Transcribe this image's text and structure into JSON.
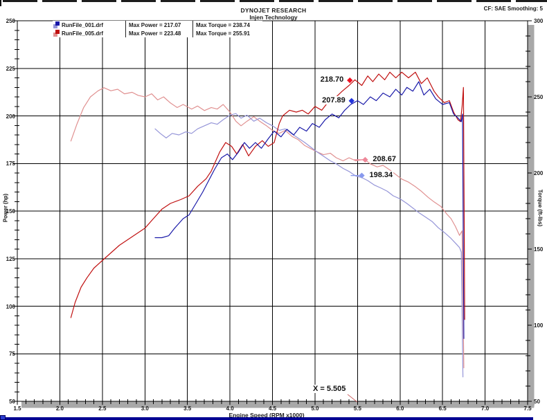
{
  "header": {
    "title": "DYNOJET RESEARCH",
    "subtitle": "Injen Technology",
    "top_right": "CF: SAE  Smoothing: 5"
  },
  "legend": {
    "rows": [
      {
        "file": "RunFile_001.drf",
        "max_power": "Max Power = 217.07",
        "max_torque": "Max Torque = 238.74",
        "color": "#1818a8",
        "color_light": "#9595d8"
      },
      {
        "file": "RunFile_005.drf",
        "max_power": "Max Power = 223.48",
        "max_torque": "Max Torque = 255.91",
        "color": "#c01010",
        "color_light": "#e09090"
      }
    ]
  },
  "chart_data": {
    "type": "line",
    "title": "DYNOJET RESEARCH",
    "subtitle": "Injen Technology",
    "xlabel": "Engine Speed (RPM x1000)",
    "ylabel_left": "Power (hp)",
    "ylabel_right": "Torque (ft-lbs)",
    "x_range": [
      1.5,
      7.5
    ],
    "y_left_range": [
      50,
      250
    ],
    "y_right_range": [
      50,
      300
    ],
    "x_ticks": [
      1.5,
      2.0,
      2.5,
      3.0,
      3.5,
      4.0,
      4.5,
      5.0,
      5.5,
      6.0,
      6.5,
      7.0,
      7.5
    ],
    "y_left_ticks": [
      250,
      225,
      200,
      175,
      150,
      125,
      100,
      75,
      50
    ],
    "y_right_ticks": [
      300,
      250,
      200,
      150,
      100,
      50
    ],
    "minor_steps": {
      "x": 0.1,
      "left": 5,
      "right": 10
    },
    "grid": true,
    "legend_position": "top-left",
    "cursor_label": "X = 5.505",
    "cursor_x": 5.505,
    "series": [
      {
        "name": "RunFile_005 Torque",
        "axis": "right",
        "color": "#e09090",
        "points": [
          [
            2.13,
            221
          ],
          [
            2.2,
            232
          ],
          [
            2.28,
            243
          ],
          [
            2.36,
            250
          ],
          [
            2.45,
            254
          ],
          [
            2.52,
            256
          ],
          [
            2.6,
            254
          ],
          [
            2.68,
            255
          ],
          [
            2.76,
            252
          ],
          [
            2.85,
            253
          ],
          [
            2.92,
            251
          ],
          [
            3.0,
            250
          ],
          [
            3.08,
            252
          ],
          [
            3.15,
            248
          ],
          [
            3.22,
            250
          ],
          [
            3.3,
            246
          ],
          [
            3.38,
            243
          ],
          [
            3.45,
            245
          ],
          [
            3.55,
            242
          ],
          [
            3.62,
            244
          ],
          [
            3.7,
            241
          ],
          [
            3.78,
            243
          ],
          [
            3.85,
            242
          ],
          [
            3.92,
            245
          ],
          [
            4.0,
            240
          ],
          [
            4.07,
            234
          ],
          [
            4.13,
            231
          ],
          [
            4.2,
            234
          ],
          [
            4.28,
            237
          ],
          [
            4.35,
            234
          ],
          [
            4.43,
            231
          ],
          [
            4.5,
            228
          ],
          [
            4.58,
            226
          ],
          [
            4.65,
            228
          ],
          [
            4.73,
            224
          ],
          [
            4.8,
            222
          ],
          [
            4.88,
            218
          ],
          [
            4.95,
            216
          ],
          [
            5.02,
            214
          ],
          [
            5.1,
            212
          ],
          [
            5.18,
            213
          ],
          [
            5.25,
            210
          ],
          [
            5.33,
            208
          ],
          [
            5.4,
            210
          ],
          [
            5.48,
            208
          ],
          [
            5.58,
            209
          ],
          [
            5.65,
            206
          ],
          [
            5.73,
            204
          ],
          [
            5.8,
            205
          ],
          [
            5.88,
            202
          ],
          [
            5.95,
            199
          ],
          [
            6.02,
            196
          ],
          [
            6.1,
            194
          ],
          [
            6.18,
            191
          ],
          [
            6.25,
            188
          ],
          [
            6.33,
            184
          ],
          [
            6.4,
            181
          ],
          [
            6.48,
            178
          ],
          [
            6.55,
            173
          ],
          [
            6.6,
            170
          ],
          [
            6.65,
            165
          ],
          [
            6.7,
            159
          ],
          [
            6.73,
            162
          ],
          [
            6.75,
            72
          ]
        ]
      },
      {
        "name": "RunFile_001 Torque",
        "axis": "right",
        "color": "#9595d8",
        "points": [
          [
            3.12,
            229
          ],
          [
            3.18,
            226
          ],
          [
            3.25,
            223
          ],
          [
            3.32,
            226
          ],
          [
            3.4,
            225
          ],
          [
            3.48,
            227
          ],
          [
            3.55,
            226
          ],
          [
            3.62,
            229
          ],
          [
            3.7,
            231
          ],
          [
            3.78,
            233
          ],
          [
            3.85,
            232
          ],
          [
            3.92,
            235
          ],
          [
            4.0,
            238
          ],
          [
            4.07,
            239
          ],
          [
            4.13,
            236
          ],
          [
            4.2,
            238
          ],
          [
            4.28,
            234
          ],
          [
            4.35,
            236
          ],
          [
            4.43,
            233
          ],
          [
            4.5,
            231
          ],
          [
            4.58,
            228
          ],
          [
            4.65,
            229
          ],
          [
            4.72,
            226
          ],
          [
            4.8,
            223
          ],
          [
            4.88,
            220
          ],
          [
            4.95,
            217
          ],
          [
            5.02,
            214
          ],
          [
            5.1,
            211
          ],
          [
            5.18,
            208
          ],
          [
            5.25,
            206
          ],
          [
            5.33,
            203
          ],
          [
            5.4,
            201
          ],
          [
            5.48,
            198
          ],
          [
            5.55,
            197
          ],
          [
            5.62,
            195
          ],
          [
            5.7,
            192
          ],
          [
            5.78,
            190
          ],
          [
            5.85,
            188
          ],
          [
            5.92,
            185
          ],
          [
            6.0,
            183
          ],
          [
            6.08,
            180
          ],
          [
            6.15,
            177
          ],
          [
            6.22,
            174
          ],
          [
            6.3,
            171
          ],
          [
            6.38,
            168
          ],
          [
            6.45,
            164
          ],
          [
            6.52,
            161
          ],
          [
            6.6,
            157
          ],
          [
            6.65,
            154
          ],
          [
            6.7,
            151
          ],
          [
            6.72,
            148
          ],
          [
            6.74,
            66
          ]
        ]
      },
      {
        "name": "RunFile_005 Power",
        "axis": "left",
        "color": "#c01010",
        "points": [
          [
            2.13,
            94
          ],
          [
            2.18,
            102
          ],
          [
            2.25,
            110
          ],
          [
            2.32,
            115
          ],
          [
            2.4,
            120
          ],
          [
            2.5,
            124
          ],
          [
            2.6,
            128
          ],
          [
            2.7,
            132
          ],
          [
            2.8,
            135
          ],
          [
            2.9,
            138
          ],
          [
            3.0,
            141
          ],
          [
            3.1,
            146
          ],
          [
            3.2,
            151
          ],
          [
            3.3,
            154
          ],
          [
            3.42,
            156
          ],
          [
            3.52,
            158
          ],
          [
            3.62,
            163
          ],
          [
            3.72,
            167
          ],
          [
            3.78,
            171
          ],
          [
            3.88,
            181
          ],
          [
            3.95,
            186
          ],
          [
            4.02,
            184
          ],
          [
            4.08,
            180
          ],
          [
            4.15,
            185
          ],
          [
            4.22,
            179
          ],
          [
            4.3,
            184
          ],
          [
            4.38,
            187
          ],
          [
            4.45,
            184
          ],
          [
            4.52,
            186
          ],
          [
            4.58,
            196
          ],
          [
            4.62,
            200
          ],
          [
            4.7,
            203
          ],
          [
            4.78,
            202
          ],
          [
            4.85,
            203
          ],
          [
            4.92,
            201
          ],
          [
            5.0,
            205
          ],
          [
            5.08,
            203
          ],
          [
            5.15,
            207
          ],
          [
            5.25,
            210
          ],
          [
            5.32,
            213
          ],
          [
            5.4,
            216
          ],
          [
            5.47,
            219
          ],
          [
            5.55,
            216
          ],
          [
            5.62,
            221
          ],
          [
            5.68,
            218
          ],
          [
            5.75,
            222
          ],
          [
            5.82,
            219
          ],
          [
            5.88,
            223
          ],
          [
            5.95,
            220
          ],
          [
            6.02,
            223
          ],
          [
            6.1,
            220
          ],
          [
            6.18,
            223
          ],
          [
            6.25,
            217
          ],
          [
            6.32,
            220
          ],
          [
            6.4,
            213
          ],
          [
            6.45,
            210
          ],
          [
            6.52,
            207
          ],
          [
            6.58,
            208
          ],
          [
            6.63,
            202
          ],
          [
            6.68,
            198
          ],
          [
            6.71,
            197
          ],
          [
            6.73,
            205
          ],
          [
            6.745,
            215
          ],
          [
            6.755,
            140
          ],
          [
            6.76,
            93
          ]
        ]
      },
      {
        "name": "RunFile_001 Power",
        "axis": "left",
        "color": "#1818a8",
        "points": [
          [
            3.12,
            136
          ],
          [
            3.2,
            136
          ],
          [
            3.28,
            137
          ],
          [
            3.35,
            141
          ],
          [
            3.45,
            146
          ],
          [
            3.52,
            148
          ],
          [
            3.6,
            154
          ],
          [
            3.68,
            160
          ],
          [
            3.75,
            166
          ],
          [
            3.82,
            172
          ],
          [
            3.9,
            178
          ],
          [
            3.97,
            180
          ],
          [
            4.03,
            177
          ],
          [
            4.1,
            181
          ],
          [
            4.17,
            186
          ],
          [
            4.23,
            183
          ],
          [
            4.3,
            186
          ],
          [
            4.37,
            183
          ],
          [
            4.45,
            188
          ],
          [
            4.52,
            192
          ],
          [
            4.6,
            189
          ],
          [
            4.67,
            193
          ],
          [
            4.75,
            190
          ],
          [
            4.82,
            194
          ],
          [
            4.9,
            192
          ],
          [
            4.97,
            196
          ],
          [
            5.05,
            194
          ],
          [
            5.12,
            198
          ],
          [
            5.2,
            201
          ],
          [
            5.28,
            199
          ],
          [
            5.35,
            203
          ],
          [
            5.42,
            206
          ],
          [
            5.5,
            208
          ],
          [
            5.57,
            206
          ],
          [
            5.65,
            210
          ],
          [
            5.72,
            208
          ],
          [
            5.8,
            212
          ],
          [
            5.88,
            210
          ],
          [
            5.95,
            214
          ],
          [
            6.02,
            211
          ],
          [
            6.08,
            215
          ],
          [
            6.15,
            213
          ],
          [
            6.22,
            218
          ],
          [
            6.28,
            211
          ],
          [
            6.35,
            214
          ],
          [
            6.42,
            209
          ],
          [
            6.5,
            206
          ],
          [
            6.58,
            207
          ],
          [
            6.63,
            201
          ],
          [
            6.68,
            199
          ],
          [
            6.72,
            197
          ],
          [
            6.735,
            201
          ],
          [
            6.75,
            83
          ]
        ]
      }
    ],
    "markers": [
      {
        "label": "218.70",
        "rpm": 5.41,
        "value": 218.7,
        "axis": "left",
        "color": "#ee1122",
        "label_side": "left"
      },
      {
        "label": "207.89",
        "rpm": 5.43,
        "value": 207.89,
        "axis": "left",
        "color": "#2233dd",
        "label_side": "left"
      },
      {
        "label": "208.67",
        "rpm": 5.59,
        "value": 208.67,
        "axis": "right",
        "color": "#ee8899",
        "label_side": "right"
      },
      {
        "label": "198.34",
        "rpm": 5.55,
        "value": 198.34,
        "axis": "right",
        "color": "#8899ee",
        "label_side": "right"
      }
    ]
  }
}
